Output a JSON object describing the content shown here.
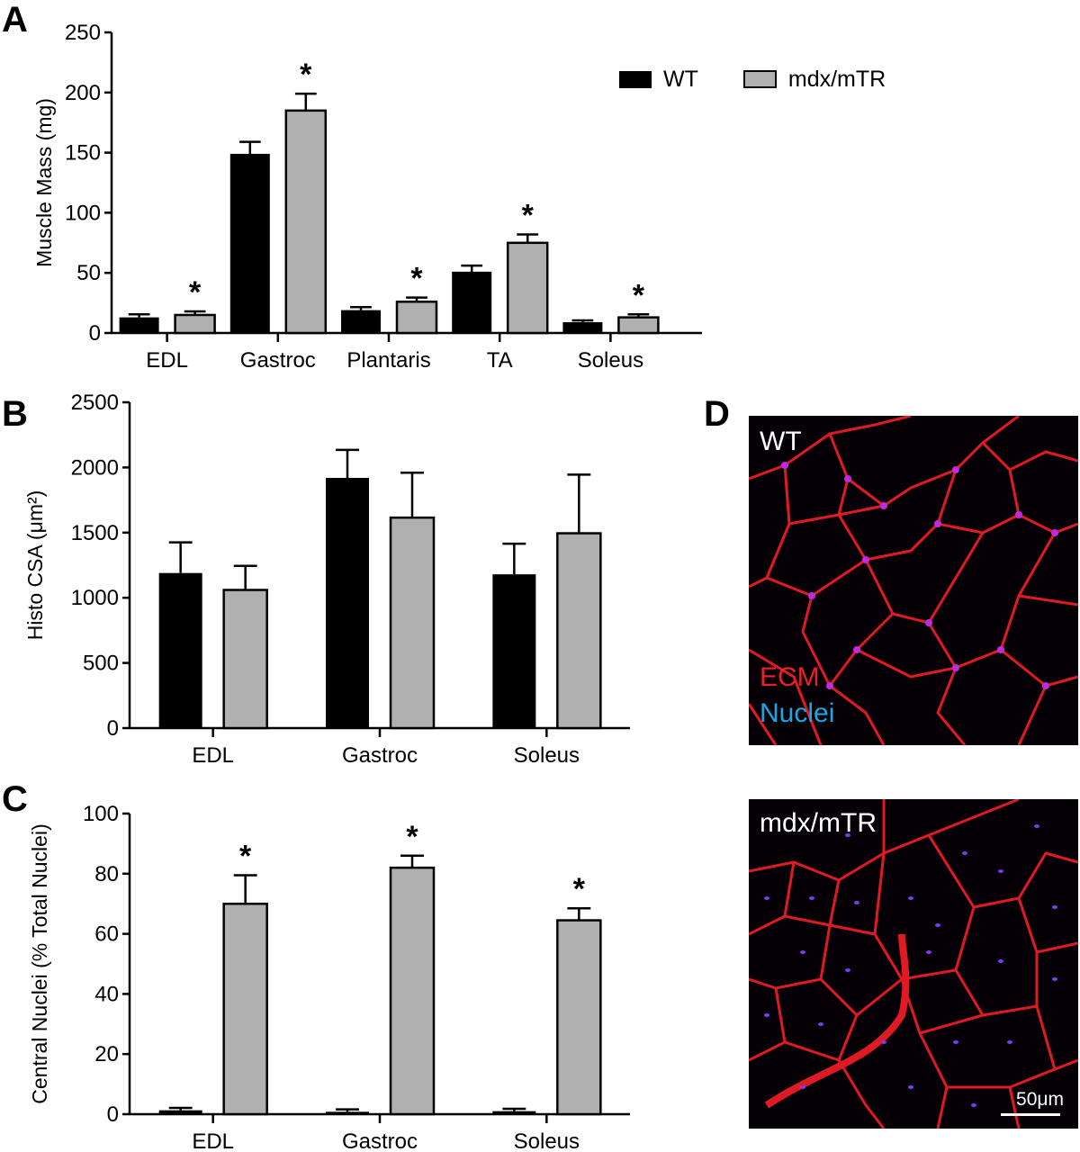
{
  "panels": {
    "A": {
      "letter": "A"
    },
    "B": {
      "letter": "B"
    },
    "C": {
      "letter": "C"
    },
    "D": {
      "letter": "D"
    }
  },
  "legend": {
    "wt": "WT",
    "mdx": "mdx/mTR"
  },
  "colors": {
    "wt": "#000000",
    "mdx": "#b0b0b0",
    "ecm": "#e8202a",
    "nuclei": "#1aa7e6",
    "micro_bg": "#050005"
  },
  "micrographs": {
    "top": {
      "label": "WT",
      "ecm_label": "ECM",
      "nuclei_label": "Nuclei"
    },
    "bottom": {
      "label": "mdx/mTR",
      "scale_bar": "50μm"
    }
  },
  "chart_data": [
    {
      "panel": "A",
      "type": "bar",
      "title": "",
      "xlabel": "",
      "ylabel": "Muscle Mass (mg)",
      "ylim": [
        0,
        250
      ],
      "yticks": [
        0,
        50,
        100,
        150,
        200,
        250
      ],
      "categories": [
        "EDL",
        "Gastroc",
        "Plantaris",
        "TA",
        "Soleus"
      ],
      "series": [
        {
          "name": "WT",
          "values": [
            13,
            149,
            19,
            51,
            9
          ],
          "errors": [
            2.5,
            10,
            2.5,
            5,
            1.5
          ]
        },
        {
          "name": "mdx/mTR",
          "values": [
            15,
            185,
            26,
            75,
            13
          ],
          "errors": [
            3,
            14,
            3.5,
            7,
            2.5
          ]
        }
      ],
      "significance": [
        "*",
        "*",
        "*",
        "*",
        "*"
      ],
      "legend_position": "top-right",
      "grid": false
    },
    {
      "panel": "B",
      "type": "bar",
      "title": "",
      "xlabel": "",
      "ylabel": "Histo CSA (μm²)",
      "ylim": [
        0,
        2500
      ],
      "yticks": [
        0,
        500,
        1000,
        1500,
        2000,
        2500
      ],
      "categories": [
        "EDL",
        "Gastroc",
        "Soleus"
      ],
      "series": [
        {
          "name": "WT",
          "values": [
            1190,
            1920,
            1180
          ],
          "errors": [
            235,
            215,
            235
          ]
        },
        {
          "name": "mdx/mTR",
          "values": [
            1060,
            1615,
            1495
          ],
          "errors": [
            185,
            345,
            450
          ]
        }
      ],
      "significance": [
        "",
        "",
        ""
      ],
      "grid": false
    },
    {
      "panel": "C",
      "type": "bar",
      "title": "",
      "xlabel": "",
      "ylabel": "Central Nuclei (% Total Nuclei)",
      "ylim": [
        0,
        100
      ],
      "yticks": [
        0,
        20,
        40,
        60,
        80,
        100
      ],
      "categories": [
        "EDL",
        "Gastroc",
        "Soleus"
      ],
      "series": [
        {
          "name": "WT",
          "values": [
            1.3,
            0.8,
            1.0
          ],
          "errors": [
            0.8,
            0.8,
            0.8
          ]
        },
        {
          "name": "mdx/mTR",
          "values": [
            70,
            82,
            64.5
          ],
          "errors": [
            9.5,
            4,
            4
          ]
        }
      ],
      "significance": [
        "*",
        "*",
        "*"
      ],
      "grid": false
    }
  ]
}
